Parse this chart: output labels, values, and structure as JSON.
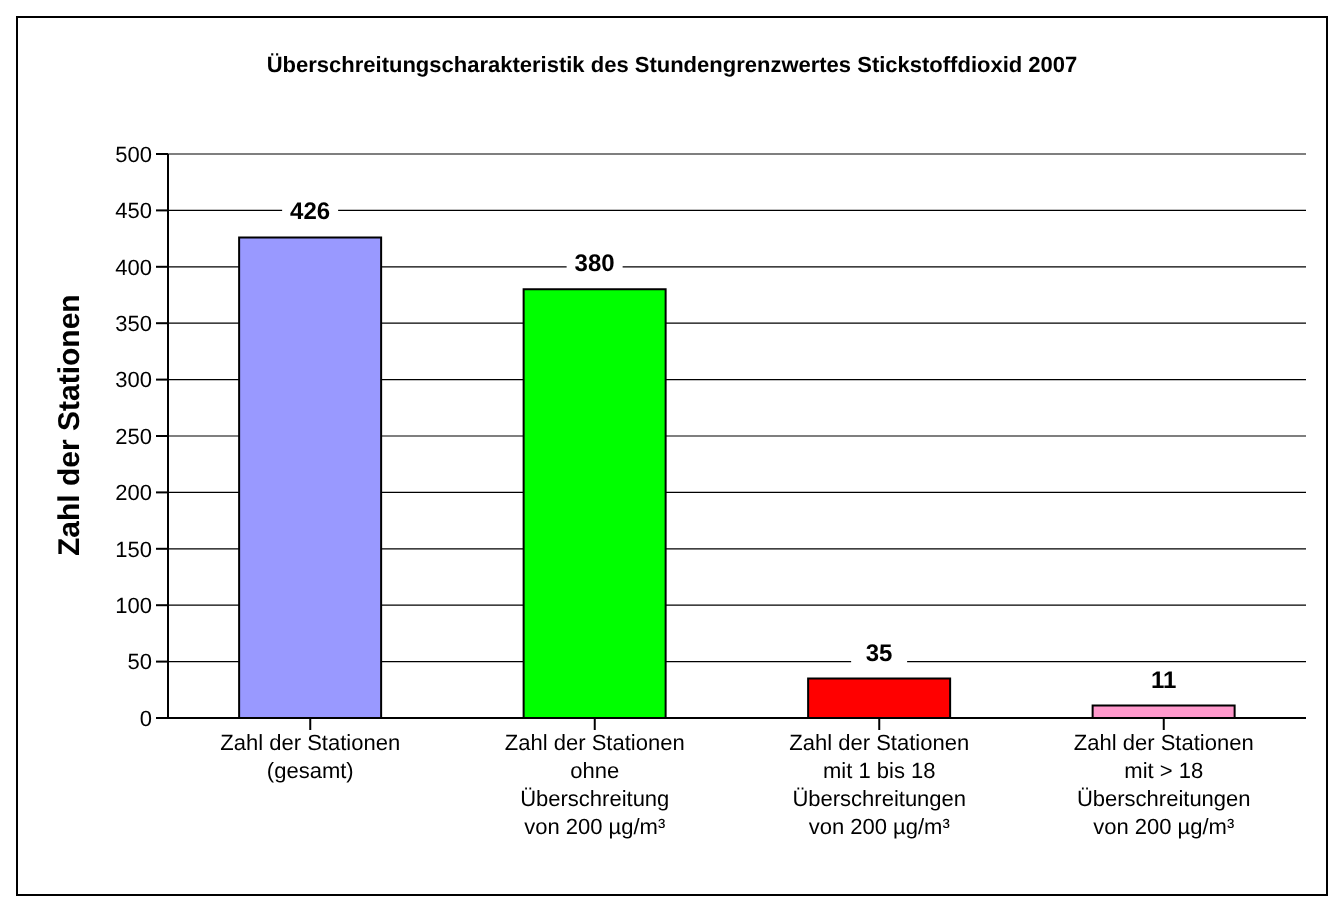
{
  "chart_data": {
    "type": "bar",
    "title": "Überschreitungscharakteristik des Stundengrenzwertes Stickstoffdioxid 2007",
    "ylabel": "Zahl der Stationen",
    "categories": [
      "Zahl der Stationen\n(gesamt)",
      "Zahl der Stationen\nohne\nÜberschreitung\nvon 200 µg/m³",
      "Zahl der Stationen\nmit 1 bis 18\nÜberschreitungen\nvon 200 µg/m³",
      "Zahl der Stationen\nmit > 18\nÜberschreitungen\nvon 200 µg/m³"
    ],
    "values": [
      426,
      380,
      35,
      11
    ],
    "colors": [
      "#9999ff",
      "#00ff00",
      "#ff0000",
      "#ff99cc"
    ],
    "ylim": [
      0,
      500
    ],
    "yticks": [
      0,
      50,
      100,
      150,
      200,
      250,
      300,
      350,
      400,
      450,
      500
    ],
    "grid": "y",
    "data_labels": true
  }
}
